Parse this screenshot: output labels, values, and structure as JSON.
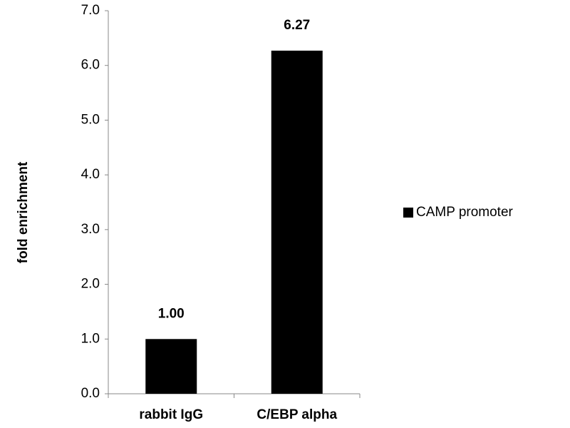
{
  "chart_data": {
    "type": "bar",
    "y_label": "fold enrichment",
    "categories": [
      "rabbit IgG",
      "C/EBP alpha"
    ],
    "series": [
      {
        "name": "CAMP promoter",
        "color": "#000000",
        "values": [
          1.0,
          6.27
        ],
        "value_labels": [
          "1.00",
          "6.27"
        ]
      }
    ],
    "ylim": [
      0,
      7
    ],
    "yticks": [
      {
        "value": 0,
        "label": "0.0"
      },
      {
        "value": 1,
        "label": "1.0"
      },
      {
        "value": 2,
        "label": "2.0"
      },
      {
        "value": 3,
        "label": "3.0"
      },
      {
        "value": 4,
        "label": "4.0"
      },
      {
        "value": 5,
        "label": "5.0"
      },
      {
        "value": 6,
        "label": "6.0"
      },
      {
        "value": 7,
        "label": "7.0"
      }
    ],
    "grid": false,
    "legend": "right"
  }
}
